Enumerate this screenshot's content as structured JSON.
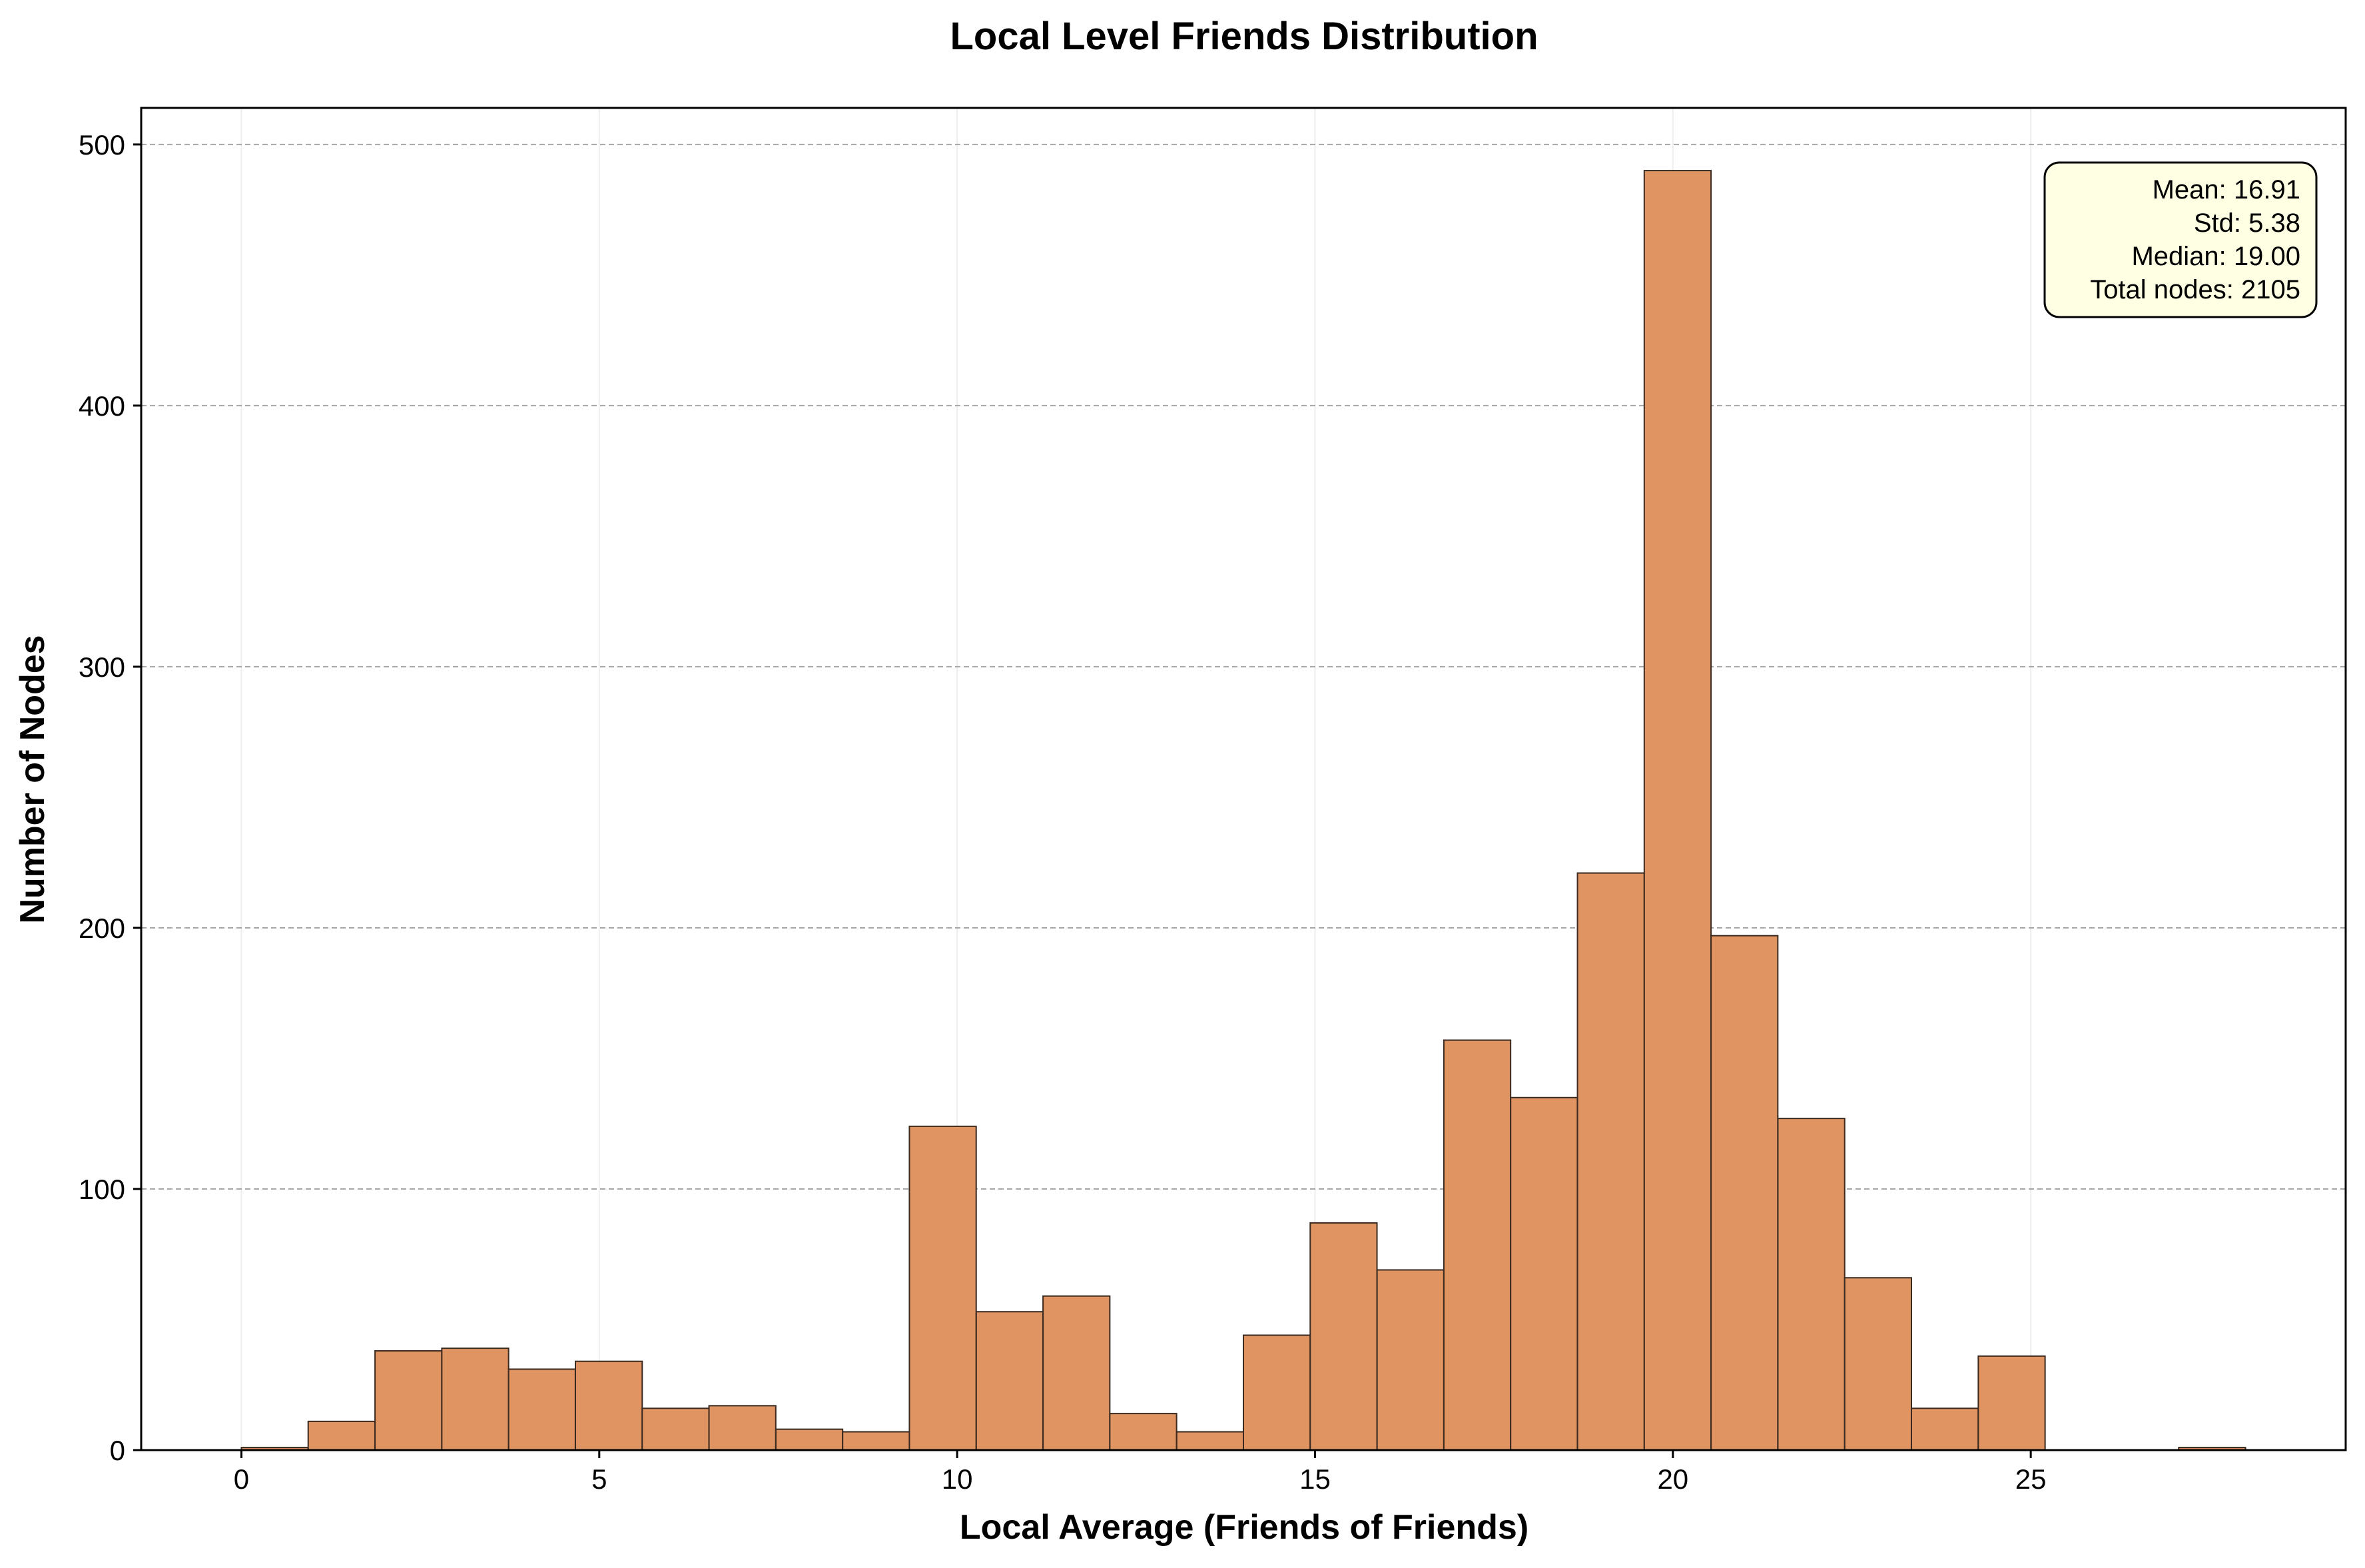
{
  "chart_data": {
    "type": "bar",
    "subtype": "histogram",
    "title": "Local Level Friends Distribution",
    "xlabel": "Local Average (Friends of Friends)",
    "ylabel": "Number of Nodes",
    "xlim": [
      -1.4,
      29.4
    ],
    "ylim": [
      0,
      514
    ],
    "xticks": [
      0,
      5,
      10,
      15,
      20,
      25
    ],
    "yticks": [
      0,
      100,
      200,
      300,
      400,
      500
    ],
    "bin_width": 0.933,
    "bins": [
      {
        "x0": 0.0,
        "value": 1
      },
      {
        "x0": 0.933,
        "value": 11
      },
      {
        "x0": 1.867,
        "value": 38
      },
      {
        "x0": 2.8,
        "value": 39
      },
      {
        "x0": 3.733,
        "value": 31
      },
      {
        "x0": 4.667,
        "value": 34
      },
      {
        "x0": 5.6,
        "value": 16
      },
      {
        "x0": 6.533,
        "value": 17
      },
      {
        "x0": 7.467,
        "value": 8
      },
      {
        "x0": 8.4,
        "value": 7
      },
      {
        "x0": 9.333,
        "value": 124
      },
      {
        "x0": 10.267,
        "value": 53
      },
      {
        "x0": 11.2,
        "value": 59
      },
      {
        "x0": 12.133,
        "value": 14
      },
      {
        "x0": 13.067,
        "value": 7
      },
      {
        "x0": 14.0,
        "value": 44
      },
      {
        "x0": 14.933,
        "value": 87
      },
      {
        "x0": 15.867,
        "value": 69
      },
      {
        "x0": 16.8,
        "value": 157
      },
      {
        "x0": 17.733,
        "value": 135
      },
      {
        "x0": 18.667,
        "value": 221
      },
      {
        "x0": 19.6,
        "value": 490
      },
      {
        "x0": 20.533,
        "value": 197
      },
      {
        "x0": 21.467,
        "value": 127
      },
      {
        "x0": 22.4,
        "value": 66
      },
      {
        "x0": 23.333,
        "value": 16
      },
      {
        "x0": 24.267,
        "value": 36
      },
      {
        "x0": 25.2,
        "value": 0
      },
      {
        "x0": 26.133,
        "value": 0
      },
      {
        "x0": 27.067,
        "value": 1
      }
    ],
    "grid": {
      "y": true,
      "x": true,
      "y_style": "dashed"
    },
    "colors": {
      "bar": "#df9462",
      "bar_edge": "#3a2a20",
      "grid": "#a6a6a6",
      "stats_bg": "#ffffe4"
    },
    "stats_box": {
      "placement": "top-right",
      "lines": [
        "Mean: 16.91",
        "Std: 5.38",
        "Median: 19.00",
        "Total nodes: 2105"
      ]
    }
  }
}
